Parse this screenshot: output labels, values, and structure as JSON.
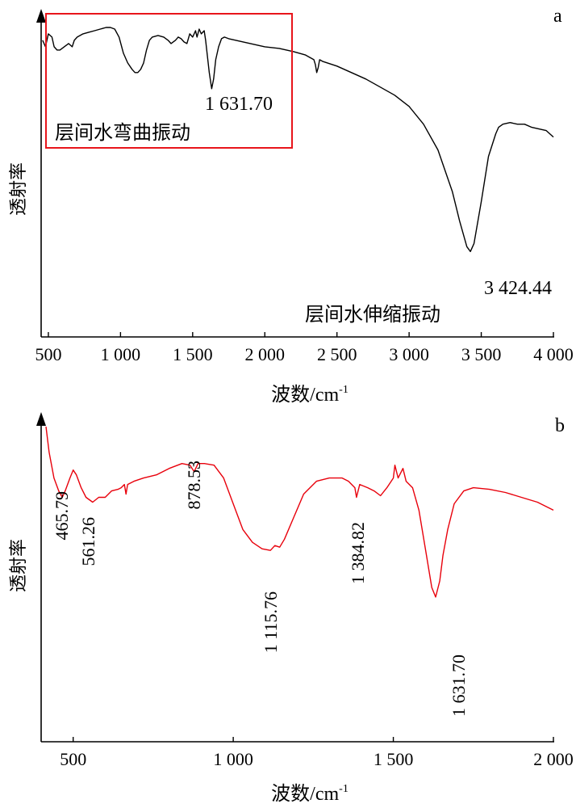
{
  "chart_data": [
    {
      "panel_label": "a",
      "type": "line",
      "xlabel": "波数/cm",
      "xlabel_sup": "-1",
      "ylabel": "透射率",
      "xlim": [
        450,
        4000
      ],
      "ylim": [
        0,
        1
      ],
      "x_ticks": [
        500,
        1000,
        1500,
        2000,
        2500,
        3000,
        3500,
        4000
      ],
      "x_tick_labels": [
        "500",
        "1 000",
        "1 500",
        "2 000",
        "2 500",
        "3 000",
        "3 500",
        "4 000"
      ],
      "grid": false,
      "line_color": "#000000",
      "series": [
        {
          "points": [
            [
              460,
              0.92
            ],
            [
              480,
              0.9
            ],
            [
              500,
              0.94
            ],
            [
              525,
              0.93
            ],
            [
              540,
              0.9
            ],
            [
              560,
              0.89
            ],
            [
              580,
              0.89
            ],
            [
              610,
              0.9
            ],
            [
              640,
              0.91
            ],
            [
              665,
              0.9
            ],
            [
              680,
              0.92
            ],
            [
              700,
              0.93
            ],
            [
              740,
              0.94
            ],
            [
              780,
              0.945
            ],
            [
              820,
              0.95
            ],
            [
              860,
              0.955
            ],
            [
              900,
              0.96
            ],
            [
              930,
              0.96
            ],
            [
              960,
              0.955
            ],
            [
              990,
              0.93
            ],
            [
              1020,
              0.88
            ],
            [
              1050,
              0.85
            ],
            [
              1080,
              0.83
            ],
            [
              1100,
              0.82
            ],
            [
              1120,
              0.82
            ],
            [
              1140,
              0.83
            ],
            [
              1160,
              0.85
            ],
            [
              1180,
              0.89
            ],
            [
              1200,
              0.92
            ],
            [
              1220,
              0.93
            ],
            [
              1260,
              0.935
            ],
            [
              1300,
              0.93
            ],
            [
              1330,
              0.92
            ],
            [
              1350,
              0.91
            ],
            [
              1380,
              0.92
            ],
            [
              1400,
              0.93
            ],
            [
              1420,
              0.925
            ],
            [
              1440,
              0.915
            ],
            [
              1460,
              0.91
            ],
            [
              1480,
              0.94
            ],
            [
              1500,
              0.93
            ],
            [
              1520,
              0.95
            ],
            [
              1530,
              0.93
            ],
            [
              1545,
              0.955
            ],
            [
              1560,
              0.94
            ],
            [
              1580,
              0.95
            ],
            [
              1590,
              0.92
            ],
            [
              1600,
              0.88
            ],
            [
              1615,
              0.82
            ],
            [
              1632,
              0.77
            ],
            [
              1645,
              0.8
            ],
            [
              1660,
              0.86
            ],
            [
              1680,
              0.9
            ],
            [
              1700,
              0.925
            ],
            [
              1720,
              0.93
            ],
            [
              1750,
              0.925
            ],
            [
              1800,
              0.92
            ],
            [
              1850,
              0.915
            ],
            [
              1900,
              0.91
            ],
            [
              1950,
              0.905
            ],
            [
              2000,
              0.9
            ],
            [
              2100,
              0.895
            ],
            [
              2200,
              0.885
            ],
            [
              2280,
              0.875
            ],
            [
              2320,
              0.865
            ],
            [
              2340,
              0.86
            ],
            [
              2350,
              0.845
            ],
            [
              2360,
              0.82
            ],
            [
              2370,
              0.835
            ],
            [
              2380,
              0.86
            ],
            [
              2400,
              0.855
            ],
            [
              2500,
              0.84
            ],
            [
              2600,
              0.82
            ],
            [
              2700,
              0.8
            ],
            [
              2800,
              0.775
            ],
            [
              2900,
              0.75
            ],
            [
              3000,
              0.715
            ],
            [
              3100,
              0.66
            ],
            [
              3200,
              0.58
            ],
            [
              3300,
              0.45
            ],
            [
              3350,
              0.36
            ],
            [
              3400,
              0.28
            ],
            [
              3425,
              0.265
            ],
            [
              3450,
              0.29
            ],
            [
              3500,
              0.42
            ],
            [
              3550,
              0.56
            ],
            [
              3600,
              0.63
            ],
            [
              3620,
              0.65
            ],
            [
              3650,
              0.66
            ],
            [
              3700,
              0.665
            ],
            [
              3750,
              0.66
            ],
            [
              3800,
              0.66
            ],
            [
              3850,
              0.65
            ],
            [
              3900,
              0.645
            ],
            [
              3950,
              0.64
            ],
            [
              4000,
              0.62
            ]
          ]
        }
      ],
      "annotations": [
        {
          "text": "1 631.70",
          "x": 1631.7
        },
        {
          "text": "3 424.44",
          "x": 3424.44
        },
        {
          "text": "层间水弯曲振动"
        },
        {
          "text": "层间水伸缩振动"
        }
      ]
    },
    {
      "panel_label": "b",
      "type": "line",
      "xlabel": "波数/cm",
      "xlabel_sup": "-1",
      "ylabel": "透射率",
      "xlim": [
        400,
        2000
      ],
      "ylim": [
        0,
        1
      ],
      "x_ticks": [
        500,
        1000,
        1500,
        2000
      ],
      "x_tick_labels": [
        "500",
        "1 000",
        "1 500",
        "2 000"
      ],
      "grid": false,
      "line_color": "#e8000b",
      "series": [
        {
          "points": [
            [
              415,
              0.98
            ],
            [
              425,
              0.9
            ],
            [
              440,
              0.82
            ],
            [
              455,
              0.78
            ],
            [
              466,
              0.76
            ],
            [
              475,
              0.78
            ],
            [
              490,
              0.82
            ],
            [
              500,
              0.845
            ],
            [
              510,
              0.83
            ],
            [
              525,
              0.79
            ],
            [
              540,
              0.76
            ],
            [
              561,
              0.745
            ],
            [
              580,
              0.76
            ],
            [
              600,
              0.76
            ],
            [
              620,
              0.78
            ],
            [
              640,
              0.785
            ],
            [
              650,
              0.79
            ],
            [
              660,
              0.8
            ],
            [
              665,
              0.77
            ],
            [
              670,
              0.8
            ],
            [
              690,
              0.81
            ],
            [
              720,
              0.82
            ],
            [
              760,
              0.83
            ],
            [
              800,
              0.85
            ],
            [
              840,
              0.865
            ],
            [
              865,
              0.86
            ],
            [
              878,
              0.84
            ],
            [
              890,
              0.865
            ],
            [
              910,
              0.865
            ],
            [
              940,
              0.86
            ],
            [
              970,
              0.82
            ],
            [
              1000,
              0.74
            ],
            [
              1030,
              0.66
            ],
            [
              1060,
              0.62
            ],
            [
              1090,
              0.6
            ],
            [
              1116,
              0.595
            ],
            [
              1130,
              0.61
            ],
            [
              1145,
              0.605
            ],
            [
              1160,
              0.63
            ],
            [
              1190,
              0.7
            ],
            [
              1220,
              0.77
            ],
            [
              1260,
              0.81
            ],
            [
              1300,
              0.82
            ],
            [
              1340,
              0.82
            ],
            [
              1360,
              0.81
            ],
            [
              1380,
              0.79
            ],
            [
              1385,
              0.76
            ],
            [
              1395,
              0.8
            ],
            [
              1420,
              0.79
            ],
            [
              1440,
              0.78
            ],
            [
              1460,
              0.765
            ],
            [
              1480,
              0.79
            ],
            [
              1500,
              0.82
            ],
            [
              1505,
              0.86
            ],
            [
              1515,
              0.82
            ],
            [
              1530,
              0.85
            ],
            [
              1540,
              0.81
            ],
            [
              1560,
              0.79
            ],
            [
              1580,
              0.72
            ],
            [
              1600,
              0.6
            ],
            [
              1620,
              0.48
            ],
            [
              1632,
              0.45
            ],
            [
              1645,
              0.5
            ],
            [
              1655,
              0.58
            ],
            [
              1670,
              0.66
            ],
            [
              1690,
              0.74
            ],
            [
              1720,
              0.78
            ],
            [
              1750,
              0.79
            ],
            [
              1800,
              0.785
            ],
            [
              1850,
              0.775
            ],
            [
              1900,
              0.76
            ],
            [
              1950,
              0.745
            ],
            [
              2000,
              0.72
            ]
          ]
        }
      ],
      "annotations": [
        {
          "text": "465.79",
          "x": 465.79
        },
        {
          "text": "561.26",
          "x": 561.26
        },
        {
          "text": "878.53",
          "x": 878.53
        },
        {
          "text": "1 115.76",
          "x": 1115.76
        },
        {
          "text": "1 384.82",
          "x": 1384.82
        },
        {
          "text": "1 631.70",
          "x": 1631.7
        }
      ]
    }
  ]
}
